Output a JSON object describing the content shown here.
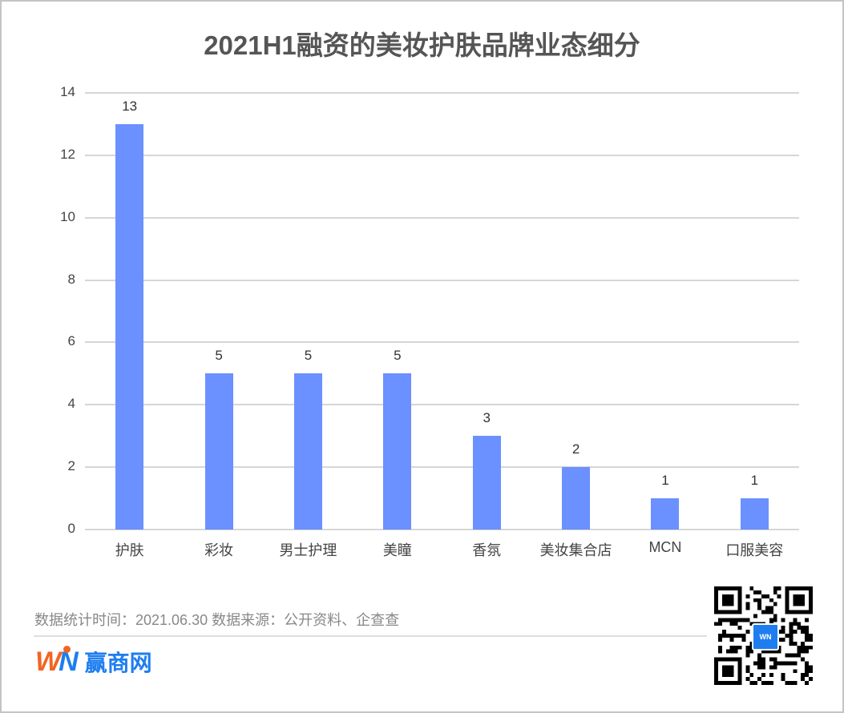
{
  "chart_data": {
    "type": "bar",
    "title": "2021H1融资的美妆护肤品牌业态细分",
    "categories": [
      "护肤",
      "彩妆",
      "男士护理",
      "美瞳",
      "香氛",
      "美妆集合店",
      "MCN",
      "口服美容"
    ],
    "values": [
      13,
      5,
      5,
      5,
      3,
      2,
      1,
      1
    ],
    "xlabel": "",
    "ylabel": "",
    "ylim": [
      0,
      14
    ],
    "yticks": [
      0,
      2,
      4,
      6,
      8,
      10,
      12,
      14
    ],
    "grid": true,
    "legend": "none",
    "bar_color": "#6b90ff",
    "data_labels": [
      "13",
      "5",
      "5",
      "5",
      "3",
      "2",
      "1",
      "1"
    ]
  },
  "footer": {
    "stats_note": "数据统计时间：2021.06.30  数据来源：公开资料、企查查",
    "brand_mark_w": "W",
    "brand_mark_n": "N",
    "brand_name": "赢商网",
    "qr_badge": "WN"
  },
  "colors": {
    "bar": "#6b90ff",
    "title": "#555555",
    "brand_orange": "#f26522",
    "brand_blue": "#1e7ef0"
  }
}
